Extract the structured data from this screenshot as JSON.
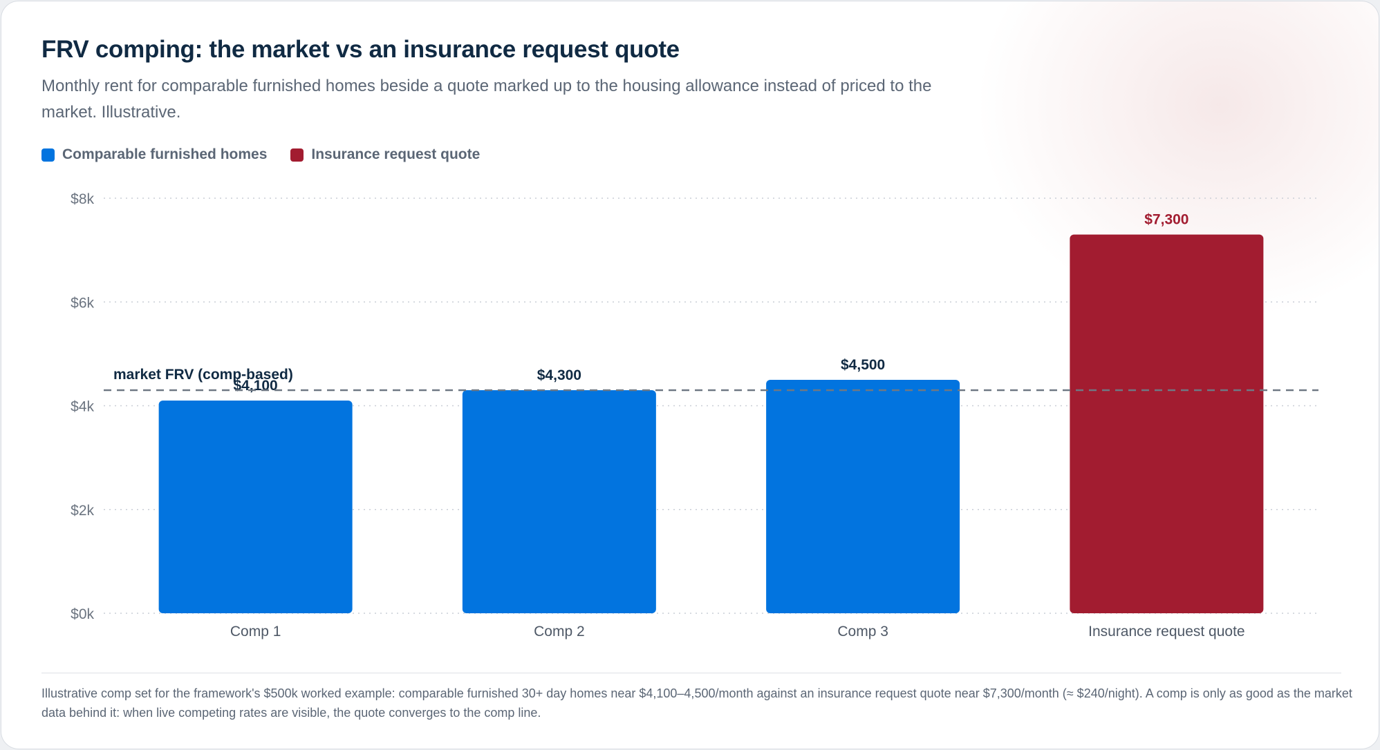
{
  "title": "FRV comping: the market vs an insurance request quote",
  "subtitle": "Monthly rent for comparable furnished homes beside a quote marked up to the housing allowance instead of priced to the market. Illustrative.",
  "legend": [
    {
      "label": "Comparable furnished homes",
      "color": "#0274df"
    },
    {
      "label": "Insurance request quote",
      "color": "#a21c30"
    }
  ],
  "footnote": "Illustrative comp set for the framework's $500k worked example: comparable furnished 30+ day homes near $4,100–4,500/month against an insurance request quote near $7,300/month (≈ $240/night). A comp is only as good as the market data behind it: when live competing rates are visible, the quote converges to the comp line.",
  "chart_data": {
    "type": "bar",
    "categories": [
      "Comp 1",
      "Comp 2",
      "Comp 3",
      "Insurance request quote"
    ],
    "values": [
      4100,
      4300,
      4500,
      7300
    ],
    "value_labels": [
      "$4,100",
      "$4,300",
      "$4,500",
      "$7,300"
    ],
    "series_index": [
      0,
      0,
      0,
      1
    ],
    "ylim": [
      0,
      8000
    ],
    "yticks": [
      0,
      2000,
      4000,
      6000,
      8000
    ],
    "ytick_labels": [
      "$0k",
      "$2k",
      "$4k",
      "$6k",
      "$8k"
    ],
    "grid": true,
    "reference_line": {
      "value": 4300,
      "label": "market FRV (comp-based)"
    },
    "colors": {
      "comp": "#0274df",
      "quote": "#a21c30",
      "comp_label": "#102a43",
      "quote_label": "#a21c30"
    }
  }
}
